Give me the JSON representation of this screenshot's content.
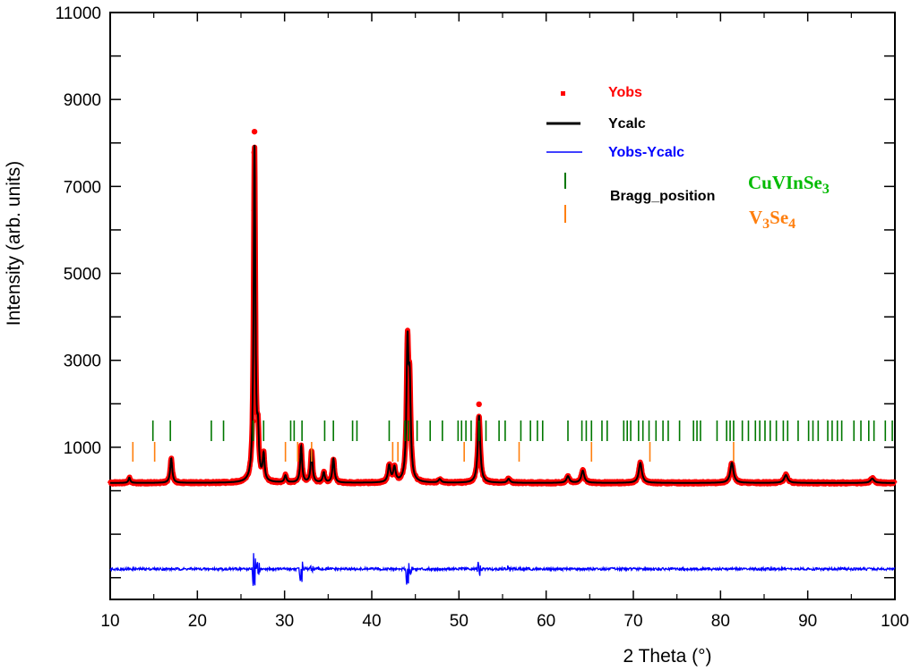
{
  "colors": {
    "obs": "#ff0000",
    "calc": "#000000",
    "diff": "#0000ff",
    "phase1": "#007700",
    "phase2": "#ff7f0e"
  },
  "chart_data": {
    "type": "line",
    "xlabel": "2 Theta (°)",
    "ylabel": "Intensity (arb. units)",
    "xlim": [
      10,
      100
    ],
    "ylim": [
      -2500,
      11000
    ],
    "x_ticks": [
      "10",
      "20",
      "30",
      "40",
      "50",
      "60",
      "70",
      "80",
      "90",
      "100"
    ],
    "y_tick_labels": [
      "1000",
      "3000",
      "5000",
      "7000",
      "9000",
      "11000"
    ],
    "y_tick_values": [
      1000,
      3000,
      5000,
      7000,
      9000,
      11000
    ],
    "legend": {
      "placement": "top-right",
      "entries": [
        {
          "label": "Yobs",
          "style": "marker",
          "color": "#ff0000"
        },
        {
          "label": "Ycalc",
          "style": "line",
          "color": "#000000"
        },
        {
          "label": "Yobs-Ycalc",
          "style": "line",
          "color": "#0000ff"
        },
        {
          "label": "Bragg_position",
          "style": "ticks",
          "color": "#000000"
        }
      ]
    },
    "phases": [
      {
        "name_main": "CuVInSe",
        "name_sub": "3",
        "name_parts": [
          "CuVInSe",
          "3"
        ],
        "color": "#007700"
      },
      {
        "name_main": "V",
        "name_sub": "3",
        "name_parts": [
          "V",
          "3",
          "Se",
          "4"
        ],
        "color": "#ff7f0e"
      }
    ],
    "background": 180,
    "peaks": [
      {
        "x": 12.2,
        "h": 120,
        "w": 0.12
      },
      {
        "x": 17.0,
        "h": 560,
        "w": 0.14
      },
      {
        "x": 26.55,
        "h": 7700,
        "w": 0.12
      },
      {
        "x": 26.95,
        "h": 900,
        "w": 0.12
      },
      {
        "x": 27.6,
        "h": 580,
        "w": 0.13
      },
      {
        "x": 30.1,
        "h": 160,
        "w": 0.14
      },
      {
        "x": 31.9,
        "h": 830,
        "w": 0.13
      },
      {
        "x": 33.1,
        "h": 740,
        "w": 0.13
      },
      {
        "x": 34.5,
        "h": 230,
        "w": 0.14
      },
      {
        "x": 35.6,
        "h": 550,
        "w": 0.14
      },
      {
        "x": 42.0,
        "h": 380,
        "w": 0.17
      },
      {
        "x": 42.6,
        "h": 330,
        "w": 0.17
      },
      {
        "x": 44.1,
        "h": 3000,
        "w": 0.14
      },
      {
        "x": 44.35,
        "h": 2000,
        "w": 0.14
      },
      {
        "x": 47.8,
        "h": 80,
        "w": 0.18
      },
      {
        "x": 52.3,
        "h": 1550,
        "w": 0.17
      },
      {
        "x": 55.7,
        "h": 90,
        "w": 0.18
      },
      {
        "x": 62.5,
        "h": 150,
        "w": 0.2
      },
      {
        "x": 64.2,
        "h": 280,
        "w": 0.2
      },
      {
        "x": 70.8,
        "h": 460,
        "w": 0.21
      },
      {
        "x": 81.3,
        "h": 460,
        "w": 0.22
      },
      {
        "x": 87.5,
        "h": 180,
        "w": 0.24
      },
      {
        "x": 97.4,
        "h": 100,
        "w": 0.24
      }
    ],
    "yobs_extra": [
      {
        "x": 26.55,
        "y": 8260
      },
      {
        "x": 26.52,
        "y": 7780
      },
      {
        "x": 44.1,
        "y": 3380
      },
      {
        "x": 52.3,
        "y": 1990
      }
    ],
    "bragg_phase1": [
      14.9,
      16.9,
      21.6,
      23.0,
      26.4,
      27.6,
      30.7,
      31.1,
      32.0,
      34.6,
      35.6,
      37.8,
      38.3,
      42.0,
      43.8,
      44.2,
      45.2,
      46.7,
      48.1,
      49.9,
      50.3,
      50.8,
      51.4,
      52.3,
      53.1,
      54.6,
      55.3,
      57.1,
      58.2,
      59.0,
      59.6,
      62.5,
      64.1,
      64.6,
      65.2,
      66.4,
      67.0,
      68.9,
      69.3,
      69.7,
      70.6,
      71.1,
      71.8,
      72.6,
      73.4,
      74.0,
      75.3,
      76.9,
      77.3,
      77.7,
      79.6,
      80.7,
      81.1,
      81.5,
      82.5,
      83.2,
      84.0,
      84.5,
      85.1,
      85.7,
      86.4,
      87.2,
      87.7,
      88.9,
      90.1,
      90.6,
      91.2,
      92.3,
      92.8,
      93.4,
      93.9,
      95.3,
      96.1,
      97.0,
      97.6,
      98.9,
      99.7
    ],
    "bragg_phase2": [
      12.6,
      15.1,
      30.1,
      31.5,
      33.1,
      42.4,
      43.0,
      50.6,
      56.9,
      65.2,
      71.9,
      81.5
    ],
    "diff_features": [
      {
        "x": 26.5,
        "amp": 600
      },
      {
        "x": 27.0,
        "amp": 250
      },
      {
        "x": 31.9,
        "amp": 400
      },
      {
        "x": 33.1,
        "amp": 120
      },
      {
        "x": 44.1,
        "amp": 500
      },
      {
        "x": 44.4,
        "amp": 180
      },
      {
        "x": 52.3,
        "amp": 250
      },
      {
        "x": 55.7,
        "amp": 80
      }
    ]
  }
}
